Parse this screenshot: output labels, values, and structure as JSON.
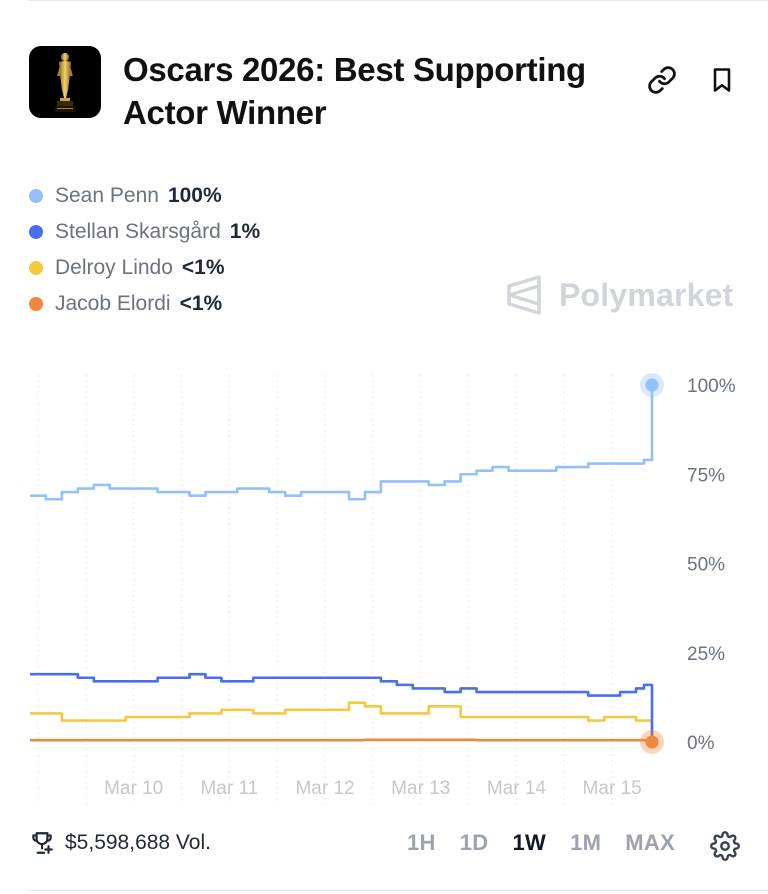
{
  "market": {
    "title": "Oscars 2026: Best Supporting Actor Winner",
    "icon": "oscar-statuette-icon"
  },
  "actions": {
    "link_icon": "link-icon",
    "bookmark_icon": "bookmark-icon"
  },
  "legend": [
    {
      "name": "Sean Penn",
      "value": "100%",
      "color": "#93c0f8"
    },
    {
      "name": "Stellan Skarsgård",
      "value": "1%",
      "color": "#4a6ef0"
    },
    {
      "name": "Delroy Lindo",
      "value": "<1%",
      "color": "#f5c842"
    },
    {
      "name": "Jacob Elordi",
      "value": "<1%",
      "color": "#f0873c"
    }
  ],
  "watermark": {
    "text": "Polymarket"
  },
  "chart_data": {
    "type": "line",
    "x_ticks": [
      "Mar 10",
      "Mar 11",
      "Mar 12",
      "Mar 13",
      "Mar 14",
      "Mar 15"
    ],
    "y_ticks": [
      "100%",
      "75%",
      "50%",
      "25%",
      "0%"
    ],
    "ylim": [
      0,
      100
    ],
    "grid": "vertical dotted",
    "x_start": "Mar 9 10:00",
    "x_end": "Mar 15 22:00",
    "series": [
      {
        "name": "Sean Penn",
        "color": "#93c0f8",
        "points": [
          [
            "Mar 9 10:00",
            69
          ],
          [
            "Mar 9 14:00",
            68
          ],
          [
            "Mar 9 18:00",
            70
          ],
          [
            "Mar 9 22:00",
            71
          ],
          [
            "Mar 10 02:00",
            72
          ],
          [
            "Mar 10 06:00",
            71
          ],
          [
            "Mar 10 10:00",
            71
          ],
          [
            "Mar 10 14:00",
            71
          ],
          [
            "Mar 10 18:00",
            70
          ],
          [
            "Mar 10 22:00",
            70
          ],
          [
            "Mar 11 02:00",
            69
          ],
          [
            "Mar 11 06:00",
            70
          ],
          [
            "Mar 11 10:00",
            70
          ],
          [
            "Mar 11 14:00",
            71
          ],
          [
            "Mar 11 18:00",
            71
          ],
          [
            "Mar 11 22:00",
            70
          ],
          [
            "Mar 12 02:00",
            69
          ],
          [
            "Mar 12 06:00",
            70
          ],
          [
            "Mar 12 10:00",
            70
          ],
          [
            "Mar 12 14:00",
            70
          ],
          [
            "Mar 12 18:00",
            68
          ],
          [
            "Mar 12 22:00",
            70
          ],
          [
            "Mar 13 02:00",
            73
          ],
          [
            "Mar 13 06:00",
            73
          ],
          [
            "Mar 13 10:00",
            73
          ],
          [
            "Mar 13 14:00",
            72
          ],
          [
            "Mar 13 18:00",
            73
          ],
          [
            "Mar 13 22:00",
            75
          ],
          [
            "Mar 14 02:00",
            76
          ],
          [
            "Mar 14 06:00",
            77
          ],
          [
            "Mar 14 10:00",
            76
          ],
          [
            "Mar 14 14:00",
            76
          ],
          [
            "Mar 14 18:00",
            76
          ],
          [
            "Mar 14 22:00",
            77
          ],
          [
            "Mar 15 02:00",
            77
          ],
          [
            "Mar 15 06:00",
            78
          ],
          [
            "Mar 15 10:00",
            78
          ],
          [
            "Mar 15 14:00",
            78
          ],
          [
            "Mar 15 18:00",
            78
          ],
          [
            "Mar 15 20:00",
            79
          ],
          [
            "Mar 15 22:00",
            100
          ]
        ]
      },
      {
        "name": "Stellan Skarsgård",
        "color": "#4a6ef0",
        "points": [
          [
            "Mar 9 10:00",
            19
          ],
          [
            "Mar 9 14:00",
            19
          ],
          [
            "Mar 9 18:00",
            19
          ],
          [
            "Mar 9 22:00",
            18
          ],
          [
            "Mar 10 02:00",
            17
          ],
          [
            "Mar 10 06:00",
            17
          ],
          [
            "Mar 10 10:00",
            17
          ],
          [
            "Mar 10 14:00",
            17
          ],
          [
            "Mar 10 18:00",
            18
          ],
          [
            "Mar 10 22:00",
            18
          ],
          [
            "Mar 11 02:00",
            19
          ],
          [
            "Mar 11 06:00",
            18
          ],
          [
            "Mar 11 10:00",
            17
          ],
          [
            "Mar 11 14:00",
            17
          ],
          [
            "Mar 11 18:00",
            18
          ],
          [
            "Mar 11 22:00",
            18
          ],
          [
            "Mar 12 02:00",
            18
          ],
          [
            "Mar 12 06:00",
            18
          ],
          [
            "Mar 12 10:00",
            18
          ],
          [
            "Mar 12 14:00",
            18
          ],
          [
            "Mar 12 18:00",
            18
          ],
          [
            "Mar 12 22:00",
            18
          ],
          [
            "Mar 13 02:00",
            17
          ],
          [
            "Mar 13 06:00",
            16
          ],
          [
            "Mar 13 10:00",
            15
          ],
          [
            "Mar 13 14:00",
            15
          ],
          [
            "Mar 13 18:00",
            14
          ],
          [
            "Mar 13 22:00",
            15
          ],
          [
            "Mar 14 02:00",
            14
          ],
          [
            "Mar 14 06:00",
            14
          ],
          [
            "Mar 14 10:00",
            14
          ],
          [
            "Mar 14 14:00",
            14
          ],
          [
            "Mar 14 18:00",
            14
          ],
          [
            "Mar 14 22:00",
            14
          ],
          [
            "Mar 15 02:00",
            14
          ],
          [
            "Mar 15 06:00",
            13
          ],
          [
            "Mar 15 10:00",
            13
          ],
          [
            "Mar 15 14:00",
            14
          ],
          [
            "Mar 15 18:00",
            15
          ],
          [
            "Mar 15 20:00",
            16
          ],
          [
            "Mar 15 22:00",
            1
          ]
        ]
      },
      {
        "name": "Delroy Lindo",
        "color": "#f5c842",
        "points": [
          [
            "Mar 9 10:00",
            8
          ],
          [
            "Mar 9 14:00",
            8
          ],
          [
            "Mar 9 18:00",
            6
          ],
          [
            "Mar 9 22:00",
            6
          ],
          [
            "Mar 10 02:00",
            6
          ],
          [
            "Mar 10 06:00",
            6
          ],
          [
            "Mar 10 10:00",
            7
          ],
          [
            "Mar 10 14:00",
            7
          ],
          [
            "Mar 10 18:00",
            7
          ],
          [
            "Mar 10 22:00",
            7
          ],
          [
            "Mar 11 02:00",
            8
          ],
          [
            "Mar 11 06:00",
            8
          ],
          [
            "Mar 11 10:00",
            9
          ],
          [
            "Mar 11 14:00",
            9
          ],
          [
            "Mar 11 18:00",
            8
          ],
          [
            "Mar 11 22:00",
            8
          ],
          [
            "Mar 12 02:00",
            9
          ],
          [
            "Mar 12 06:00",
            9
          ],
          [
            "Mar 12 10:00",
            9
          ],
          [
            "Mar 12 14:00",
            9
          ],
          [
            "Mar 12 18:00",
            11
          ],
          [
            "Mar 12 22:00",
            10
          ],
          [
            "Mar 13 02:00",
            8
          ],
          [
            "Mar 13 06:00",
            8
          ],
          [
            "Mar 13 10:00",
            8
          ],
          [
            "Mar 13 14:00",
            10
          ],
          [
            "Mar 13 18:00",
            10
          ],
          [
            "Mar 13 22:00",
            7
          ],
          [
            "Mar 14 02:00",
            7
          ],
          [
            "Mar 14 06:00",
            7
          ],
          [
            "Mar 14 10:00",
            7
          ],
          [
            "Mar 14 14:00",
            7
          ],
          [
            "Mar 14 18:00",
            7
          ],
          [
            "Mar 14 22:00",
            7
          ],
          [
            "Mar 15 02:00",
            7
          ],
          [
            "Mar 15 06:00",
            6
          ],
          [
            "Mar 15 10:00",
            7
          ],
          [
            "Mar 15 14:00",
            7
          ],
          [
            "Mar 15 18:00",
            6
          ],
          [
            "Mar 15 20:00",
            6
          ],
          [
            "Mar 15 22:00",
            0
          ]
        ]
      },
      {
        "name": "Jacob Elordi",
        "color": "#f0873c",
        "points": [
          [
            "Mar 9 10:00",
            0.5
          ],
          [
            "Mar 10 06:00",
            0.5
          ],
          [
            "Mar 11 02:00",
            0.5
          ],
          [
            "Mar 12 02:00",
            0.5
          ],
          [
            "Mar 12 22:00",
            0.6
          ],
          [
            "Mar 13 10:00",
            0.6
          ],
          [
            "Mar 14 02:00",
            0.5
          ],
          [
            "Mar 14 22:00",
            0.5
          ],
          [
            "Mar 15 14:00",
            0.5
          ],
          [
            "Mar 15 22:00",
            0
          ]
        ]
      }
    ]
  },
  "footer": {
    "volume_icon": "trophy-plus-icon",
    "volume": "$5,598,688 Vol.",
    "ranges": [
      "1H",
      "1D",
      "1W",
      "1M",
      "MAX"
    ],
    "active_range": "1W",
    "settings_icon": "gear-icon"
  }
}
